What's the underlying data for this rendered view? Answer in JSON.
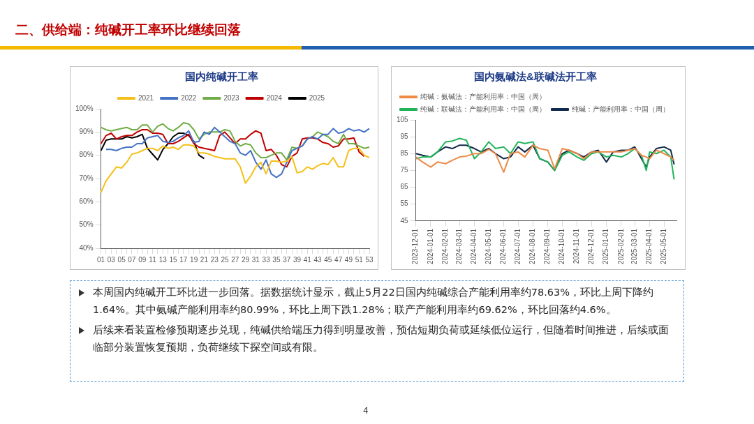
{
  "chart_data": [
    {
      "type": "line",
      "title": "国内纯碱开工率",
      "legend": "top",
      "categories": [
        "01",
        null,
        "03",
        null,
        "05",
        null,
        "07",
        null,
        "09",
        null,
        "11",
        null,
        "13",
        null,
        "15",
        null,
        "17",
        null,
        "19",
        null,
        "21",
        null,
        "23",
        null,
        "25",
        null,
        "27",
        null,
        "29",
        null,
        "31",
        null,
        "33",
        null,
        "35",
        null,
        "37",
        null,
        "39",
        null,
        "41",
        null,
        "43",
        null,
        "45",
        null,
        "47",
        null,
        "49",
        null,
        "51",
        null,
        "53"
      ],
      "ylim": [
        40,
        100
      ],
      "yticks": [
        {
          "value": 40,
          "label": "40%"
        },
        {
          "value": 50,
          "label": "50%"
        },
        {
          "value": 60,
          "label": "60%"
        },
        {
          "value": 70,
          "label": "70%"
        },
        {
          "value": 80,
          "label": "80%"
        },
        {
          "value": 90,
          "label": "90%"
        },
        {
          "value": 100,
          "label": "100%"
        }
      ],
      "series": [
        {
          "name": "2021",
          "color": "#f5c01a",
          "values": [
            64,
            69,
            72,
            75,
            74.5,
            77,
            80.5,
            81,
            82,
            83,
            83,
            82,
            84,
            83,
            83.5,
            82.5,
            84.5,
            84.5,
            84,
            81,
            81,
            80.5,
            79.5,
            79,
            78.5,
            78.5,
            78.5,
            75,
            68,
            71,
            75,
            77,
            72,
            77.5,
            77.5,
            77,
            77.5,
            79.5,
            72.5,
            73,
            75,
            74,
            75.5,
            76.5,
            76,
            79,
            75,
            75,
            82,
            83,
            83,
            80,
            79
          ]
        },
        {
          "name": "2022",
          "color": "#4472c4",
          "values": [
            null,
            82.5,
            82.5,
            82,
            83,
            83.5,
            83.5,
            85,
            85,
            87.5,
            88,
            88.5,
            86,
            85.5,
            86,
            87.5,
            88.5,
            90.5,
            85.5,
            86,
            90,
            89,
            92,
            90,
            88,
            86,
            85,
            81,
            80,
            82,
            77,
            74,
            78,
            72,
            70.5,
            72,
            77,
            82,
            83,
            84,
            87,
            88,
            87,
            89,
            89,
            91.5,
            89.5,
            90,
            91.5,
            90.5,
            91,
            90,
            91.5
          ]
        },
        {
          "name": "2023",
          "color": "#70ad47",
          "values": [
            92,
            91,
            90.5,
            91,
            91.5,
            92,
            91,
            91,
            93,
            93,
            90,
            92.5,
            93.5,
            91.5,
            90.5,
            92,
            94,
            93.5,
            91,
            87,
            89,
            90,
            90,
            90,
            91,
            90.5,
            86,
            84,
            85,
            84.5,
            81,
            79,
            79,
            80,
            81,
            81,
            78,
            83.5,
            83,
            84,
            87,
            88,
            90,
            89,
            88,
            86,
            85,
            89,
            85,
            85,
            84,
            83,
            83.5
          ]
        },
        {
          "name": "2024",
          "color": "#c00000",
          "values": [
            85,
            88.5,
            89.5,
            87,
            88,
            88.5,
            88.5,
            90,
            91,
            91,
            89.5,
            89.5,
            89,
            85,
            85,
            86,
            87.5,
            89,
            85,
            83.5,
            83,
            82.5,
            82,
            88.5,
            90,
            87.5,
            85,
            87,
            87,
            89,
            90.5,
            89.5,
            82,
            82.5,
            80,
            76,
            75,
            79.5,
            81,
            87,
            87.5,
            87.5,
            87,
            85.5,
            85,
            83.5,
            84,
            87,
            87,
            87.5,
            81.5,
            79.5,
            null
          ]
        },
        {
          "name": "2025",
          "color": "#000000",
          "values": [
            82,
            86.5,
            87,
            87,
            87,
            88,
            87.5,
            88,
            89,
            83,
            80.5,
            78,
            82.5,
            85,
            88,
            89.5,
            89.5,
            88.5,
            86,
            80,
            78.6,
            null,
            null,
            null,
            null,
            null,
            null,
            null,
            null,
            null,
            null,
            null,
            null,
            null,
            null,
            null,
            null,
            null,
            null,
            null,
            null,
            null,
            null,
            null,
            null,
            null,
            null,
            null,
            null,
            null,
            null,
            null,
            null
          ]
        }
      ]
    },
    {
      "type": "line",
      "title": "国内氨碱法&联碱法开工率",
      "legend": "top",
      "x": [
        "2023-12-01",
        "2023-12-15",
        "2024-01-01",
        "2024-01-15",
        "2024-02-01",
        "2024-02-15",
        "2024-03-01",
        "2024-03-15",
        "2024-04-01",
        "2024-04-15",
        "2024-05-01",
        "2024-05-15",
        "2024-06-01",
        "2024-06-15",
        "2024-07-01",
        "2024-07-15",
        "2024-08-01",
        "2024-08-15",
        "2024-09-01",
        "2024-09-15",
        "2024-10-01",
        "2024-10-15",
        "2024-11-01",
        "2024-11-15",
        "2024-12-01",
        "2024-12-15",
        "2025-01-01",
        "2025-01-15",
        "2025-02-01",
        "2025-02-15",
        "2025-03-01",
        "2025-03-15",
        "2025-03-25",
        "2025-04-01",
        "2025-04-15",
        "2025-05-01",
        "2025-05-15",
        "2025-05-22"
      ],
      "xlim": [
        "2023-12-01",
        "2025-05-27"
      ],
      "xticks": [
        "2023-12-01",
        "2024-01-01",
        "2024-02-01",
        "2024-03-01",
        "2024-04-01",
        "2024-05-01",
        "2024-06-01",
        "2024-07-01",
        "2024-08-01",
        "2024-09-01",
        "2024-10-01",
        "2024-11-01",
        "2024-12-01",
        "2025-01-01",
        "2025-02-01",
        "2025-03-01",
        "2025-04-01",
        "2025-05-01"
      ],
      "ylim": [
        45,
        105
      ],
      "yticks": [
        45,
        55,
        65,
        75,
        85,
        95,
        105
      ],
      "series": [
        {
          "name": "纯碱：氨碱法：产能利用率：中国（周）",
          "color": "#ed8b46",
          "values": [
            83,
            80,
            77,
            80,
            79,
            81,
            83,
            83.5,
            85,
            85,
            87.5,
            85,
            74,
            85,
            86,
            83,
            90,
            88,
            87,
            76,
            88,
            87,
            85,
            82,
            86,
            86,
            86,
            86,
            86,
            87,
            88,
            84,
            83,
            82,
            87,
            85,
            83,
            81
          ]
        },
        {
          "name": "纯碱：联碱法：产能利用率：中国（周）",
          "color": "#21b35a",
          "values": [
            82,
            83,
            83,
            86,
            92,
            92.5,
            94,
            93,
            82,
            86,
            92,
            88,
            89,
            85,
            92,
            91,
            92,
            82,
            80,
            75,
            84,
            86,
            83,
            81,
            85,
            86,
            83,
            84,
            83,
            85,
            88,
            84,
            75,
            86,
            85,
            87,
            83,
            69.6
          ]
        },
        {
          "name": "纯碱：产能利用率：中国（周）",
          "color": "#13294b",
          "values": [
            85,
            84,
            83,
            86,
            89,
            88,
            90,
            90,
            88,
            86,
            88,
            85,
            82,
            83,
            89,
            86,
            90,
            82,
            80,
            75,
            85,
            87,
            85,
            83,
            86,
            87,
            80,
            86,
            87,
            87,
            89,
            82,
            77,
            83,
            88,
            89,
            87,
            78.6
          ]
        }
      ]
    },
    {
      "type": "other",
      "title": "二、供给端：纯碱开工率环比继续回落",
      "annotations": [
        "本周国内纯碱开工环比进一步回落。据数据统计显示，截止5月22日国内纯碱综合产能利用率约78.63%，环比上周下降约1.64%。其中氨碱产能利用率约80.99%，环比上周下跌1.28%；联产产能利用率约69.62%，环比回落约4.6%。",
        "后续来看装置检修预期逐步兑现，纯碱供给端压力得到明显改善，预估短期负荷或延续低位运行，但随着时间推进，后续或面临部分装置恢复预期，负荷继续下探空间或有限。",
        "4"
      ]
    }
  ]
}
